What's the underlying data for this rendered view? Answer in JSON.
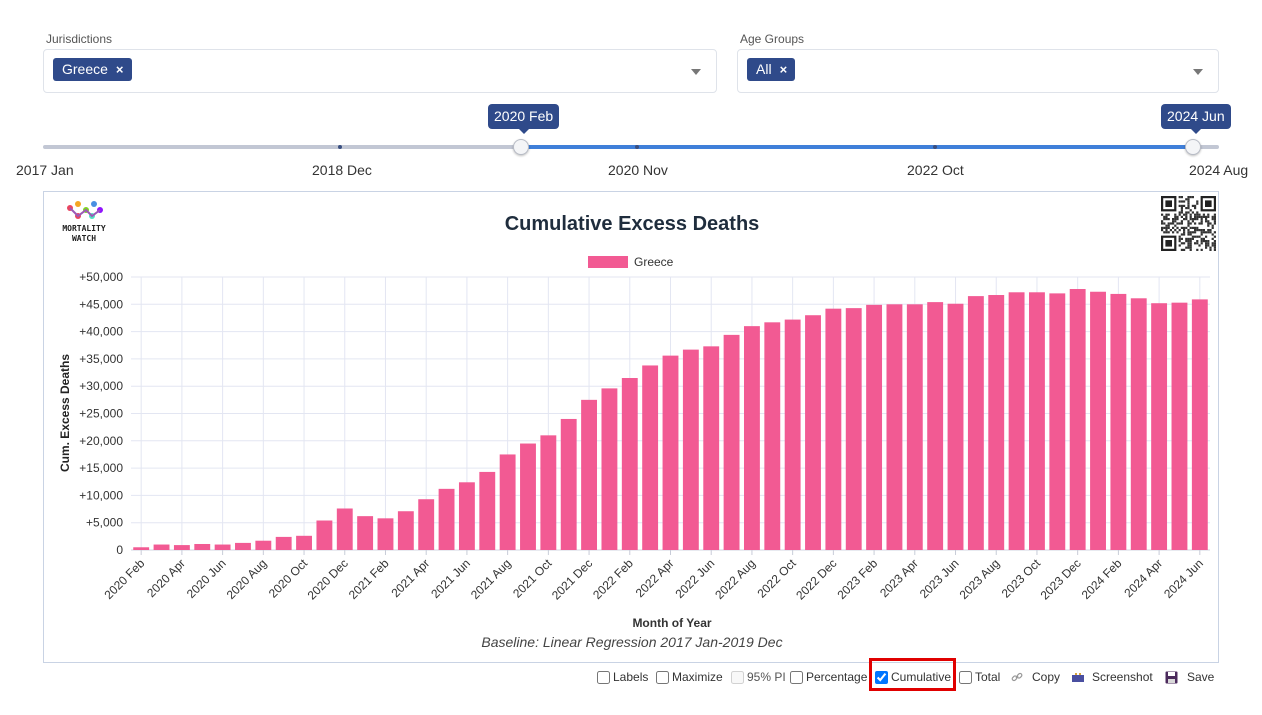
{
  "filters": {
    "jurisdictions": {
      "label": "Jurisdictions",
      "chip": "Greece",
      "remove": "×"
    },
    "age_groups": {
      "label": "Age Groups",
      "chip": "All",
      "remove": "×"
    }
  },
  "slider": {
    "start_tooltip": "2020 Feb",
    "end_tooltip": "2024 Jun",
    "labels": [
      "2017 Jan",
      "2018 Dec",
      "2020 Nov",
      "2022 Oct",
      "2024 Aug"
    ]
  },
  "chart": {
    "logo_text": [
      "MORTALITY",
      "WATCH"
    ],
    "baseline_note": "Baseline: Linear Regression 2017 Jan-2019 Dec"
  },
  "chart_data": {
    "type": "bar",
    "title": "Cumulative Excess Deaths",
    "xlabel": "Month of Year",
    "ylabel": "Cum. Excess Deaths",
    "ylim": [
      0,
      50000
    ],
    "yticks": [
      0,
      5000,
      10000,
      15000,
      20000,
      25000,
      30000,
      35000,
      40000,
      45000,
      50000
    ],
    "ytick_labels": [
      "0",
      "+5,000",
      "+10,000",
      "+15,000",
      "+20,000",
      "+25,000",
      "+30,000",
      "+35,000",
      "+40,000",
      "+45,000",
      "+50,000"
    ],
    "legend_position": "top-center",
    "grid": true,
    "bar_color": "#f25a93",
    "categories": [
      "2020 Feb",
      "2020 Mar",
      "2020 Apr",
      "2020 May",
      "2020 Jun",
      "2020 Jul",
      "2020 Aug",
      "2020 Sep",
      "2020 Oct",
      "2020 Nov",
      "2020 Dec",
      "2021 Jan",
      "2021 Feb",
      "2021 Mar",
      "2021 Apr",
      "2021 May",
      "2021 Jun",
      "2021 Jul",
      "2021 Aug",
      "2021 Sep",
      "2021 Oct",
      "2021 Nov",
      "2021 Dec",
      "2022 Jan",
      "2022 Feb",
      "2022 Mar",
      "2022 Apr",
      "2022 May",
      "2022 Jun",
      "2022 Jul",
      "2022 Aug",
      "2022 Sep",
      "2022 Oct",
      "2022 Nov",
      "2022 Dec",
      "2023 Jan",
      "2023 Feb",
      "2023 Mar",
      "2023 Apr",
      "2023 May",
      "2023 Jun",
      "2023 Jul",
      "2023 Aug",
      "2023 Sep",
      "2023 Oct",
      "2023 Nov",
      "2023 Dec",
      "2024 Jan",
      "2024 Feb",
      "2024 Mar",
      "2024 Apr",
      "2024 May",
      "2024 Jun"
    ],
    "tick_labels_shown": [
      "2020 Feb",
      "2020 Apr",
      "2020 Jun",
      "2020 Aug",
      "2020 Oct",
      "2020 Dec",
      "2021 Feb",
      "2021 Apr",
      "2021 Jun",
      "2021 Aug",
      "2021 Oct",
      "2021 Dec",
      "2022 Feb",
      "2022 Apr",
      "2022 Jun",
      "2022 Aug",
      "2022 Oct",
      "2022 Dec",
      "2023 Feb",
      "2023 Apr",
      "2023 Jun",
      "2023 Aug",
      "2023 Oct",
      "2023 Dec",
      "2024 Feb",
      "2024 Apr",
      "2024 Jun"
    ],
    "series": [
      {
        "name": "Greece",
        "values": [
          500,
          1000,
          900,
          1100,
          1000,
          1300,
          1700,
          2400,
          2600,
          5400,
          7600,
          6200,
          5800,
          7100,
          9300,
          11200,
          12400,
          14300,
          17500,
          19500,
          21000,
          24000,
          27500,
          29600,
          31500,
          33800,
          35600,
          36700,
          37300,
          39400,
          41000,
          41700,
          42200,
          43000,
          44200,
          44300,
          44900,
          45000,
          45000,
          45400,
          45100,
          46500,
          46700,
          47200,
          47200,
          47000,
          47800,
          47300,
          46900,
          46100,
          45200,
          45300,
          45900
        ]
      }
    ]
  },
  "controls": {
    "labels": "Labels",
    "maximize": "Maximize",
    "pi": "95% PI",
    "percentage": "Percentage",
    "cumulative": "Cumulative",
    "total": "Total",
    "copy": "Copy",
    "screenshot": "Screenshot",
    "save": "Save"
  }
}
